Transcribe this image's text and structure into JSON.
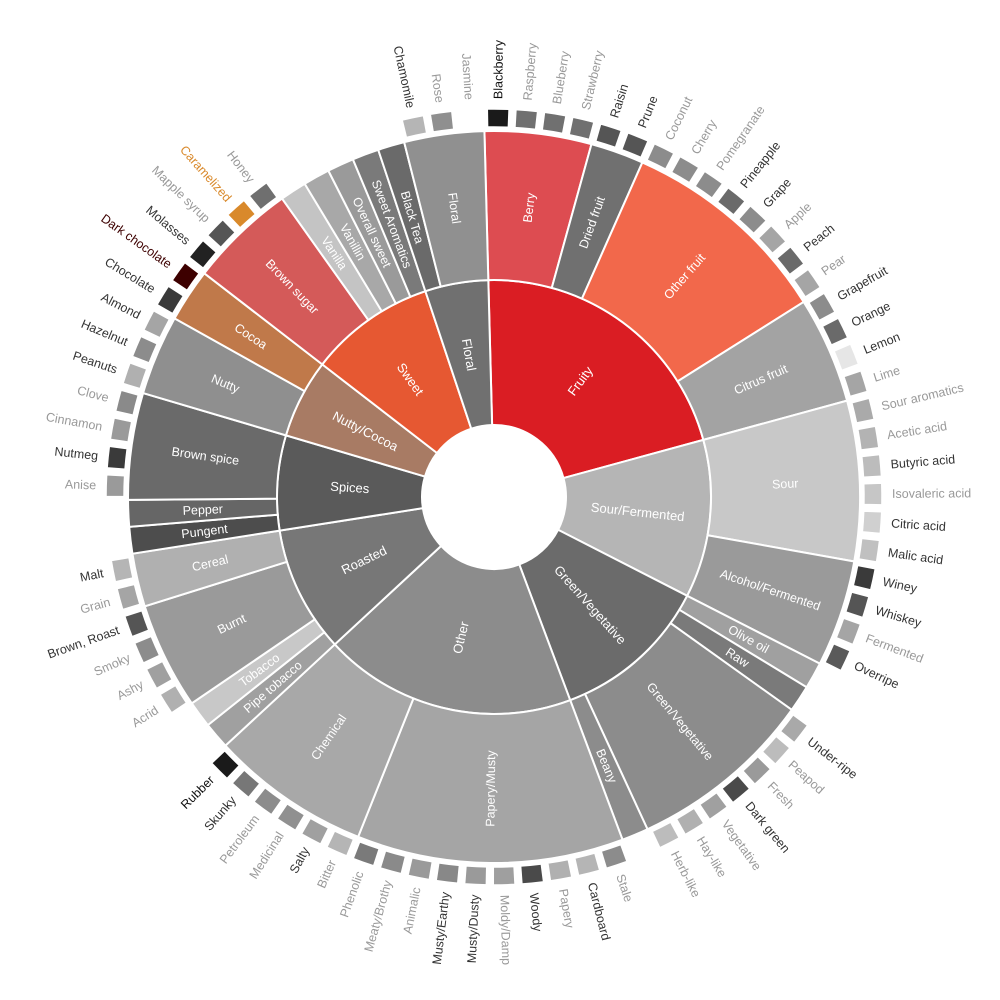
{
  "chart_data": {
    "type": "sunburst",
    "tree": [
      {
        "name": "Fruity",
        "color": "#da1d23",
        "children": [
          {
            "name": "Berry",
            "color": "#dd4c51",
            "children": [
              {
                "name": "Blackberry",
                "color": "#1a1a1a"
              },
              {
                "name": "Raspberry",
                "color": "#707070"
              },
              {
                "name": "Blueberry",
                "color": "#707070"
              },
              {
                "name": "Strawberry",
                "color": "#707070"
              }
            ]
          },
          {
            "name": "Dried fruit",
            "color": "#707070",
            "children": [
              {
                "name": "Raisin",
                "color": "#555555"
              },
              {
                "name": "Prune",
                "color": "#555555"
              }
            ]
          },
          {
            "name": "Other fruit",
            "color": "#f2684b",
            "children": [
              {
                "name": "Coconut",
                "color": "#8c8c8c"
              },
              {
                "name": "Cherry",
                "color": "#8c8c8c"
              },
              {
                "name": "Pomegranate",
                "color": "#8c8c8c"
              },
              {
                "name": "Pineapple",
                "color": "#6a6a6a"
              },
              {
                "name": "Grape",
                "color": "#8c8c8c"
              },
              {
                "name": "Apple",
                "color": "#a5a5a5"
              },
              {
                "name": "Peach",
                "color": "#6a6a6a"
              },
              {
                "name": "Pear",
                "color": "#a5a5a5"
              }
            ]
          },
          {
            "name": "Citrus fruit",
            "color": "#a3a3a3",
            "children": [
              {
                "name": "Grapefruit",
                "color": "#8c8c8c"
              },
              {
                "name": "Orange",
                "color": "#6a6a6a"
              },
              {
                "name": "Lemon",
                "color": "#e6e6e6"
              },
              {
                "name": "Lime",
                "color": "#a5a5a5"
              }
            ]
          }
        ]
      },
      {
        "name": "Sour/Fermented",
        "color": "#b5b5b5",
        "children": [
          {
            "name": "Sour",
            "color": "#c8c8c8",
            "children": [
              {
                "name": "Sour aromatics",
                "color": "#aaaaaa"
              },
              {
                "name": "Acetic acid",
                "color": "#b3b3b3"
              },
              {
                "name": "Butyric acid",
                "color": "#bcbcbc"
              },
              {
                "name": "Isovaleric acid",
                "color": "#c6c6c6"
              },
              {
                "name": "Citric acid",
                "color": "#d0d0d0"
              },
              {
                "name": "Malic acid",
                "color": "#c0c0c0"
              }
            ]
          },
          {
            "name": "Alcohol/Fermented",
            "color": "#9a9a9a",
            "children": [
              {
                "name": "Winey",
                "color": "#3a3a3a"
              },
              {
                "name": "Whiskey",
                "color": "#555555"
              },
              {
                "name": "Fermented",
                "color": "#a5a5a5"
              },
              {
                "name": "Overripe",
                "color": "#5a5a5a"
              }
            ]
          }
        ]
      },
      {
        "name": "Green/Vegetative",
        "color": "#6b6b6b",
        "children": [
          {
            "name": "Olive oil",
            "color": "#a0a0a0"
          },
          {
            "name": "Raw",
            "color": "#7a7a7a"
          },
          {
            "name": "Green/Vegetative",
            "color": "#8c8c8c",
            "children": [
              {
                "name": "Under-ripe",
                "color": "#a9a9a9"
              },
              {
                "name": "Peapod",
                "color": "#bcbcbc"
              },
              {
                "name": "Fresh",
                "color": "#9a9a9a"
              },
              {
                "name": "Dark green",
                "color": "#4a4a4a"
              },
              {
                "name": "Vegetative",
                "color": "#a0a0a0"
              },
              {
                "name": "Hay-like",
                "color": "#b0b0b0"
              },
              {
                "name": "Herb-like",
                "color": "#bcbcbc"
              }
            ]
          },
          {
            "name": "Beany",
            "color": "#8c8c8c"
          }
        ]
      },
      {
        "name": "Other",
        "color": "#8c8c8c",
        "children": [
          {
            "name": "Papery/Musty",
            "color": "#a5a5a5",
            "children": [
              {
                "name": "Stale",
                "color": "#8c8c8c"
              },
              {
                "name": "Cardboard",
                "color": "#b5b5b5"
              },
              {
                "name": "Papery",
                "color": "#b0b0b0"
              },
              {
                "name": "Woody",
                "color": "#4a4a4a"
              },
              {
                "name": "Moldy/Damp",
                "color": "#9f9f9f"
              },
              {
                "name": "Musty/Dusty",
                "color": "#9a9a9a"
              },
              {
                "name": "Musty/Earthy",
                "color": "#888888"
              },
              {
                "name": "Animalic",
                "color": "#9a9a9a"
              },
              {
                "name": "Meaty/Brothy",
                "color": "#8a8a8a"
              },
              {
                "name": "Phenolic",
                "color": "#7a7a7a"
              }
            ]
          },
          {
            "name": "Chemical",
            "color": "#a8a8a8",
            "children": [
              {
                "name": "Bitter",
                "color": "#b5b5b5"
              },
              {
                "name": "Salty",
                "color": "#a0a0a0"
              },
              {
                "name": "Medicinal",
                "color": "#909090"
              },
              {
                "name": "Petroleum",
                "color": "#8c8c8c"
              },
              {
                "name": "Skunky",
                "color": "#777777"
              },
              {
                "name": "Rubber",
                "color": "#1a1a1a"
              }
            ]
          }
        ]
      },
      {
        "name": "Roasted",
        "color": "#777777",
        "children": [
          {
            "name": "Pipe tobacco",
            "color": "#a0a0a0"
          },
          {
            "name": "Tobacco",
            "color": "#c8c8c8"
          },
          {
            "name": "Burnt",
            "color": "#9a9a9a",
            "children": [
              {
                "name": "Acrid",
                "color": "#b0b0b0"
              },
              {
                "name": "Ashy",
                "color": "#a0a0a0"
              },
              {
                "name": "Smoky",
                "color": "#8c8c8c"
              },
              {
                "name": "Brown, Roast",
                "color": "#555555"
              }
            ]
          },
          {
            "name": "Cereal",
            "color": "#b0b0b0",
            "children": [
              {
                "name": "Grain",
                "color": "#a5a5a5"
              },
              {
                "name": "Malt",
                "color": "#b5b5b5"
              }
            ]
          }
        ]
      },
      {
        "name": "Spices",
        "color": "#5a5a5a",
        "children": [
          {
            "name": "Pungent",
            "color": "#4d4d4d"
          },
          {
            "name": "Pepper",
            "color": "#666666"
          },
          {
            "name": "Brown spice",
            "color": "#6a6a6a",
            "children": [
              {
                "name": "Anise",
                "color": "#9a9a9a"
              },
              {
                "name": "Nutmeg",
                "color": "#3a3a3a"
              },
              {
                "name": "Cinnamon",
                "color": "#9a9a9a"
              },
              {
                "name": "Clove",
                "color": "#8a8a8a"
              }
            ]
          }
        ]
      },
      {
        "name": "Nutty/Cocoa",
        "color": "#a87b64",
        "children": [
          {
            "name": "Nutty",
            "color": "#8f8f8f",
            "children": [
              {
                "name": "Peanuts",
                "color": "#b0b0b0"
              },
              {
                "name": "Hazelnut",
                "color": "#8c8c8c"
              },
              {
                "name": "Almond",
                "color": "#a5a5a5"
              }
            ]
          },
          {
            "name": "Cocoa",
            "color": "#c0794a",
            "children": [
              {
                "name": "Chocolate",
                "color": "#3a3a3a"
              },
              {
                "name": "Dark chocolate",
                "color": "#3d0000"
              }
            ]
          }
        ]
      },
      {
        "name": "Sweet",
        "color": "#e65832",
        "children": [
          {
            "name": "Brown sugar",
            "color": "#d45a59",
            "children": [
              {
                "name": "Molasses",
                "color": "#222222"
              },
              {
                "name": "Mapple syrup",
                "color": "#555555"
              },
              {
                "name": "Caramelized",
                "color": "#d9892b"
              },
              {
                "name": "Honey",
                "color": "#6f6f6f"
              }
            ]
          },
          {
            "name": "Vanilla",
            "color": "#c4c4c4"
          },
          {
            "name": "Vanillin",
            "color": "#a8a8a8"
          },
          {
            "name": "Overall sweet",
            "color": "#9a9a9a"
          },
          {
            "name": "Sweet Aromatics",
            "color": "#7a7a7a"
          }
        ]
      },
      {
        "name": "Floral",
        "color": "#707070",
        "children": [
          {
            "name": "Black Tea",
            "color": "#6a6a6a"
          },
          {
            "name": "Floral",
            "color": "#909090",
            "children": [
              {
                "name": "Chamomile",
                "color": "#b5b5b5"
              },
              {
                "name": "Rose",
                "color": "#8f8f8f"
              },
              {
                "name": "Jasmine",
                "color": "#ffffff"
              }
            ]
          }
        ]
      }
    ],
    "label_colors": {
      "default": "#333333",
      "muted": "#999999",
      "caramelized": "#d9892b",
      "dark_chocolate": "#3d0000"
    }
  }
}
